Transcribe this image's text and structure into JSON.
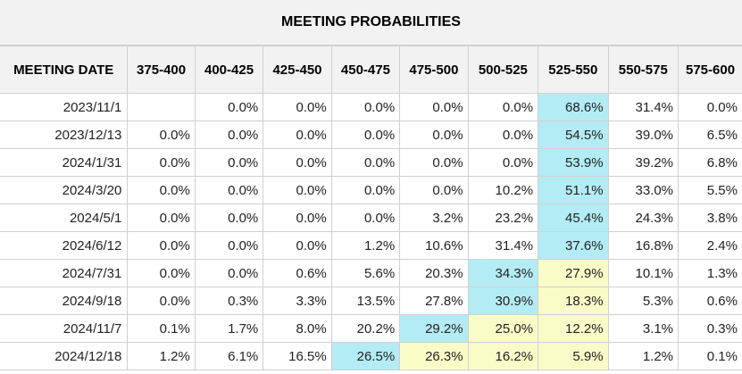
{
  "title": "MEETING PROBABILITIES",
  "columns": [
    "MEETING DATE",
    "375-400",
    "400-425",
    "425-450",
    "450-475",
    "475-500",
    "500-525",
    "525-550",
    "550-575",
    "575-600"
  ],
  "rows": [
    {
      "date": "2023/11/1",
      "values": [
        "",
        "0.0%",
        "0.0%",
        "0.0%",
        "0.0%",
        "0.0%",
        "68.6%",
        "31.4%",
        "0.0%"
      ],
      "highlight": [
        "",
        "",
        "",
        "",
        "",
        "",
        "blue",
        "",
        ""
      ]
    },
    {
      "date": "2023/12/13",
      "values": [
        "0.0%",
        "0.0%",
        "0.0%",
        "0.0%",
        "0.0%",
        "0.0%",
        "54.5%",
        "39.0%",
        "6.5%"
      ],
      "highlight": [
        "",
        "",
        "",
        "",
        "",
        "",
        "blue",
        "",
        ""
      ]
    },
    {
      "date": "2024/1/31",
      "values": [
        "0.0%",
        "0.0%",
        "0.0%",
        "0.0%",
        "0.0%",
        "0.0%",
        "53.9%",
        "39.2%",
        "6.8%"
      ],
      "highlight": [
        "",
        "",
        "",
        "",
        "",
        "",
        "blue",
        "",
        ""
      ]
    },
    {
      "date": "2024/3/20",
      "values": [
        "0.0%",
        "0.0%",
        "0.0%",
        "0.0%",
        "0.0%",
        "10.2%",
        "51.1%",
        "33.0%",
        "5.5%"
      ],
      "highlight": [
        "",
        "",
        "",
        "",
        "",
        "",
        "blue",
        "",
        ""
      ]
    },
    {
      "date": "2024/5/1",
      "values": [
        "0.0%",
        "0.0%",
        "0.0%",
        "0.0%",
        "3.2%",
        "23.2%",
        "45.4%",
        "24.3%",
        "3.8%"
      ],
      "highlight": [
        "",
        "",
        "",
        "",
        "",
        "",
        "blue",
        "",
        ""
      ]
    },
    {
      "date": "2024/6/12",
      "values": [
        "0.0%",
        "0.0%",
        "0.0%",
        "1.2%",
        "10.6%",
        "31.4%",
        "37.6%",
        "16.8%",
        "2.4%"
      ],
      "highlight": [
        "",
        "",
        "",
        "",
        "",
        "",
        "blue",
        "",
        ""
      ]
    },
    {
      "date": "2024/7/31",
      "values": [
        "0.0%",
        "0.0%",
        "0.6%",
        "5.6%",
        "20.3%",
        "34.3%",
        "27.9%",
        "10.1%",
        "1.3%"
      ],
      "highlight": [
        "",
        "",
        "",
        "",
        "",
        "blue",
        "yellow",
        "",
        ""
      ]
    },
    {
      "date": "2024/9/18",
      "values": [
        "0.0%",
        "0.3%",
        "3.3%",
        "13.5%",
        "27.8%",
        "30.9%",
        "18.3%",
        "5.3%",
        "0.6%"
      ],
      "highlight": [
        "",
        "",
        "",
        "",
        "",
        "blue",
        "yellow",
        "",
        ""
      ]
    },
    {
      "date": "2024/11/7",
      "values": [
        "0.1%",
        "1.7%",
        "8.0%",
        "20.2%",
        "29.2%",
        "25.0%",
        "12.2%",
        "3.1%",
        "0.3%"
      ],
      "highlight": [
        "",
        "",
        "",
        "",
        "blue",
        "yellow",
        "yellow",
        "",
        ""
      ]
    },
    {
      "date": "2024/12/18",
      "values": [
        "1.2%",
        "6.1%",
        "16.5%",
        "26.5%",
        "26.3%",
        "16.2%",
        "5.9%",
        "1.2%",
        "0.1%"
      ],
      "highlight": [
        "",
        "",
        "",
        "blue",
        "yellow",
        "yellow",
        "yellow",
        "",
        ""
      ]
    }
  ],
  "colors": {
    "highlight_blue": "#b3ecf5",
    "highlight_yellow": "#fafcc8",
    "header_bg": "#f2f2f2",
    "border": "#d0d0d0"
  }
}
